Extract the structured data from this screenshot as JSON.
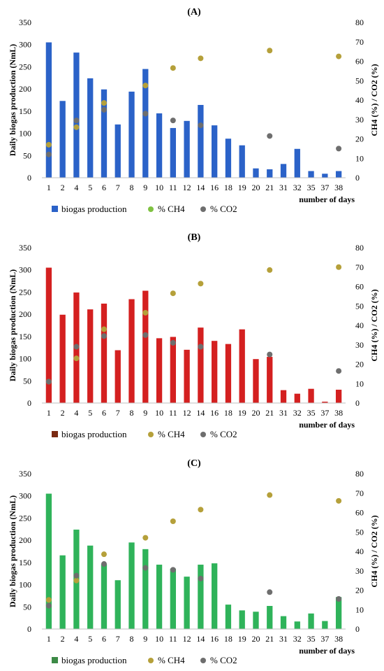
{
  "chart_data": [
    {
      "panel_label": "(A)",
      "type": "bar",
      "x_title": "number of days",
      "ylabel": "Daily biogas production (NmL)",
      "y2label": "CH4 (%) / CO2 (%)",
      "ylim": [
        0,
        350
      ],
      "y2lim": [
        0,
        80
      ],
      "yticks": [
        "0",
        "50",
        "100",
        "150",
        "200",
        "250",
        "300",
        "350"
      ],
      "y2ticks": [
        "0",
        "10",
        "20",
        "30",
        "40",
        "50",
        "60",
        "70",
        "80"
      ],
      "categories": [
        "1",
        "2",
        "4",
        "5",
        "6",
        "7",
        "8",
        "9",
        "10",
        "11",
        "12",
        "14",
        "16",
        "18",
        "19",
        "20",
        "21",
        "31",
        "32",
        "35",
        "37",
        "38"
      ],
      "bar_color": "#2B62C8",
      "legend_position": "bottom",
      "series": [
        {
          "name": "biogas production",
          "kind": "bar",
          "color": "#2B62C8",
          "values": [
            305,
            173,
            282,
            224,
            199,
            120,
            194,
            245,
            145,
            112,
            128,
            164,
            118,
            88,
            73,
            21,
            19,
            31,
            65,
            15,
            9,
            15
          ]
        },
        {
          "name": "% CH4",
          "kind": "scatter",
          "color": "#B5A03A",
          "legend_color": "#7FC241",
          "values": [
            17,
            null,
            26,
            null,
            38.5,
            null,
            null,
            47.5,
            null,
            56.5,
            null,
            61.5,
            null,
            null,
            null,
            null,
            65.5,
            null,
            null,
            null,
            null,
            62.5
          ]
        },
        {
          "name": "% CO2",
          "kind": "scatter",
          "color": "#6E6E6E",
          "values": [
            12,
            null,
            29.5,
            null,
            35,
            null,
            null,
            33,
            null,
            29.5,
            null,
            27,
            null,
            null,
            null,
            null,
            21.5,
            null,
            null,
            null,
            null,
            15
          ]
        }
      ]
    },
    {
      "panel_label": "(B)",
      "type": "bar",
      "x_title": "number of days",
      "ylabel": "Daily biogas production (NmL)",
      "y2label": "CH4 (%) / CO2 (%)",
      "ylim": [
        0,
        350
      ],
      "y2lim": [
        0,
        80
      ],
      "yticks": [
        "0",
        "50",
        "100",
        "150",
        "200",
        "250",
        "300",
        "350"
      ],
      "y2ticks": [
        "0",
        "10",
        "20",
        "30",
        "40",
        "50",
        "60",
        "70",
        "80"
      ],
      "categories": [
        "1",
        "2",
        "4",
        "5",
        "6",
        "7",
        "8",
        "9",
        "10",
        "11",
        "12",
        "14",
        "16",
        "18",
        "19",
        "20",
        "21",
        "31",
        "32",
        "35",
        "37",
        "38"
      ],
      "bar_color": "#D42020",
      "legend_position": "bottom",
      "series": [
        {
          "name": "biogas production",
          "kind": "bar",
          "color": "#D42020",
          "legend_color": "#7A2A12",
          "values": [
            305,
            199,
            249,
            211,
            224,
            119,
            234,
            253,
            146,
            149,
            120,
            170,
            140,
            133,
            166,
            99,
            104,
            29,
            21,
            32,
            3,
            30
          ]
        },
        {
          "name": "% CH4",
          "kind": "scatter",
          "color": "#B5A03A",
          "values": [
            11,
            null,
            23,
            null,
            38,
            null,
            null,
            46.5,
            null,
            56.5,
            null,
            61.5,
            null,
            null,
            null,
            null,
            68.5,
            null,
            null,
            null,
            null,
            70
          ]
        },
        {
          "name": "% CO2",
          "kind": "scatter",
          "color": "#6E6E6E",
          "values": [
            11,
            null,
            29,
            null,
            34.5,
            null,
            null,
            35,
            null,
            31,
            null,
            29,
            null,
            null,
            null,
            null,
            25,
            null,
            null,
            null,
            null,
            16.5
          ]
        }
      ]
    },
    {
      "panel_label": "(C)",
      "type": "bar",
      "x_title": "number of days",
      "ylabel": "Daily biogas production (NmL)",
      "y2label": "CH4 (%) / CO2 (%)",
      "ylim": [
        0,
        350
      ],
      "y2lim": [
        0,
        80
      ],
      "yticks": [
        "0",
        "50",
        "100",
        "150",
        "200",
        "250",
        "300",
        "350"
      ],
      "y2ticks": [
        "0",
        "10",
        "20",
        "30",
        "40",
        "50",
        "60",
        "70",
        "80"
      ],
      "categories": [
        "1",
        "2",
        "4",
        "5",
        "6",
        "7",
        "8",
        "9",
        "10",
        "11",
        "12",
        "14",
        "16",
        "18",
        "19",
        "20",
        "21",
        "31",
        "32",
        "35",
        "37",
        "38"
      ],
      "bar_color": "#2FB35A",
      "legend_position": "bottom",
      "series": [
        {
          "name": "biogas production",
          "kind": "bar",
          "color": "#2FB35A",
          "legend_color": "#3C8A46",
          "values": [
            305,
            166,
            224,
            188,
            146,
            110,
            195,
            180,
            145,
            136,
            118,
            145,
            148,
            55,
            42,
            39,
            52,
            29,
            17,
            35,
            18,
            72
          ]
        },
        {
          "name": "% CH4",
          "kind": "scatter",
          "color": "#B5A03A",
          "values": [
            15,
            null,
            25,
            null,
            38.5,
            null,
            null,
            47,
            null,
            55.5,
            null,
            61.5,
            null,
            null,
            null,
            null,
            69,
            null,
            null,
            null,
            null,
            66
          ]
        },
        {
          "name": "% CO2",
          "kind": "scatter",
          "color": "#6E6E6E",
          "values": [
            12,
            null,
            27.5,
            null,
            33.5,
            null,
            null,
            31.5,
            null,
            30.5,
            null,
            26,
            null,
            null,
            null,
            null,
            19,
            null,
            null,
            null,
            null,
            15.5
          ]
        }
      ]
    }
  ]
}
